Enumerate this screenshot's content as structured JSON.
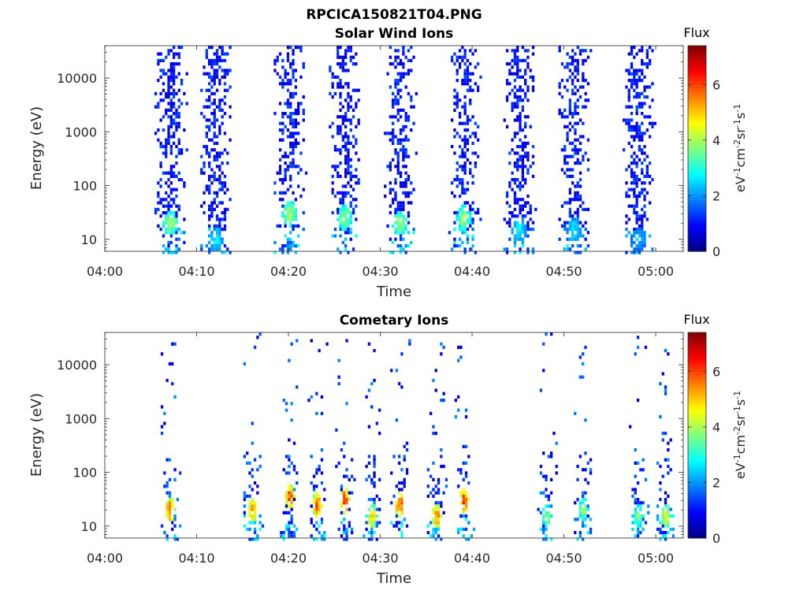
{
  "figure_title": "RPCICA150821T04.PNG",
  "chart_data": [
    {
      "type": "heatmap",
      "title": "Solar Wind Ions",
      "xlabel": "Time",
      "ylabel": "Energy (eV)",
      "x_ticks": [
        "04:00",
        "04:10",
        "04:20",
        "04:30",
        "04:40",
        "04:50",
        "05:00"
      ],
      "xlim": [
        "04:00",
        "05:03"
      ],
      "y_scale": "log",
      "y_ticks": [
        "10",
        "100",
        "1000",
        "10000"
      ],
      "ylim": [
        6,
        40000
      ],
      "colorbar": {
        "title": "Flux",
        "label": "eV-1 cm-2 sr-1 s-1",
        "ticks": [
          "0",
          "2",
          "4",
          "6"
        ],
        "range": [
          0,
          7.4
        ],
        "colormap": "jet"
      },
      "bursts": [
        {
          "time": "04:07",
          "peak_energy_eV": 20,
          "peak_flux": 4.3
        },
        {
          "time": "04:12",
          "peak_energy_eV": 10,
          "peak_flux": 3.0
        },
        {
          "time": "04:20",
          "peak_energy_eV": 30,
          "peak_flux": 4.5
        },
        {
          "time": "04:26",
          "peak_energy_eV": 25,
          "peak_flux": 4.3
        },
        {
          "time": "04:32",
          "peak_energy_eV": 20,
          "peak_flux": 4.2
        },
        {
          "time": "04:39",
          "peak_energy_eV": 25,
          "peak_flux": 4.3
        },
        {
          "time": "04:45",
          "peak_energy_eV": 15,
          "peak_flux": 3.0
        },
        {
          "time": "04:51",
          "peak_energy_eV": 15,
          "peak_flux": 3.0
        },
        {
          "time": "04:58",
          "peak_energy_eV": 10,
          "peak_flux": 2.6
        }
      ]
    },
    {
      "type": "heatmap",
      "title": "Cometary Ions",
      "xlabel": "Time",
      "ylabel": "Energy (eV)",
      "x_ticks": [
        "04:00",
        "04:10",
        "04:20",
        "04:30",
        "04:40",
        "04:50",
        "05:00"
      ],
      "xlim": [
        "04:00",
        "05:03"
      ],
      "y_scale": "log",
      "y_ticks": [
        "10",
        "100",
        "1000",
        "10000"
      ],
      "ylim": [
        6,
        40000
      ],
      "colorbar": {
        "title": "Flux",
        "label": "eV-1 cm-2 sr-1 s-1",
        "ticks": [
          "0",
          "2",
          "4",
          "6"
        ],
        "range": [
          0,
          7.4
        ],
        "colormap": "jet"
      },
      "bursts": [
        {
          "time": "04:07",
          "peak_energy_eV": 20,
          "peak_flux": 6.5
        },
        {
          "time": "04:16",
          "peak_energy_eV": 20,
          "peak_flux": 6.0
        },
        {
          "time": "04:20",
          "peak_energy_eV": 35,
          "peak_flux": 6.5
        },
        {
          "time": "04:23",
          "peak_energy_eV": 25,
          "peak_flux": 6.4
        },
        {
          "time": "04:26",
          "peak_energy_eV": 30,
          "peak_flux": 6.8
        },
        {
          "time": "04:29",
          "peak_energy_eV": 15,
          "peak_flux": 5.5
        },
        {
          "time": "04:32",
          "peak_energy_eV": 25,
          "peak_flux": 6.8
        },
        {
          "time": "04:36",
          "peak_energy_eV": 15,
          "peak_flux": 6.3
        },
        {
          "time": "04:39",
          "peak_energy_eV": 30,
          "peak_flux": 6.6
        },
        {
          "time": "04:48",
          "peak_energy_eV": 15,
          "peak_flux": 4.0
        },
        {
          "time": "04:52",
          "peak_energy_eV": 20,
          "peak_flux": 4.2
        },
        {
          "time": "04:58",
          "peak_energy_eV": 15,
          "peak_flux": 4.0
        },
        {
          "time": "05:01",
          "peak_energy_eV": 15,
          "peak_flux": 5.0
        }
      ]
    }
  ]
}
